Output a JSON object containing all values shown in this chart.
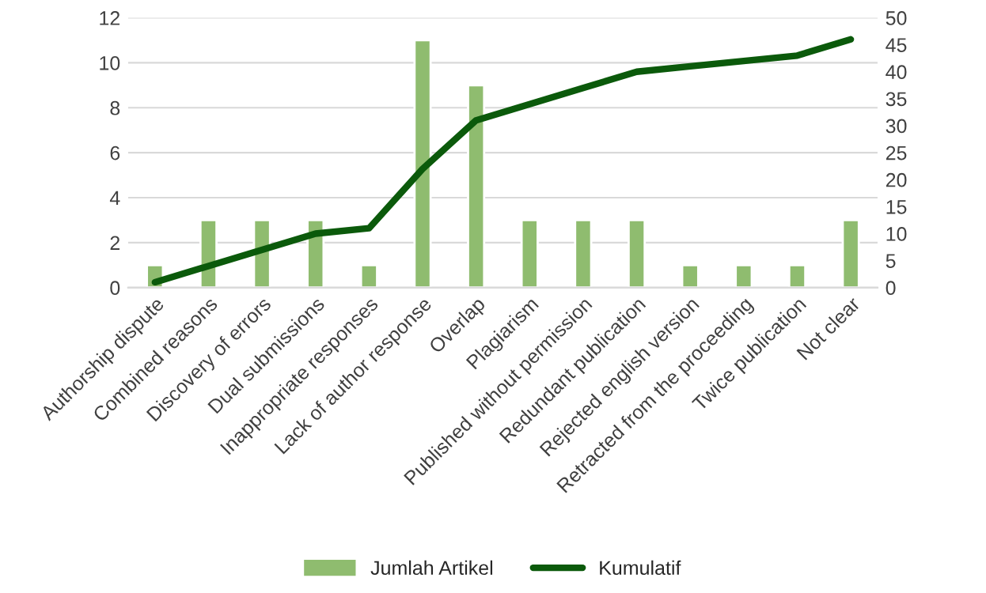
{
  "chart_data": {
    "type": "bar",
    "categories": [
      "Authorship dispute",
      "Combined reasons",
      "Discovery of errors",
      "Dual submissions",
      "Inappropriate responses",
      "Lack of author response",
      "Overlap",
      "Plagiarism",
      "Published without permission",
      "Redundant publication",
      "Rejected english version",
      "Retracted from the proceeding",
      "Twice publication",
      "Not clear"
    ],
    "series": [
      {
        "name": "Jumlah Artikel",
        "color": "#8fbc6f",
        "values": [
          1,
          3,
          3,
          3,
          1,
          11,
          9,
          3,
          3,
          3,
          1,
          1,
          1,
          3
        ]
      },
      {
        "name": "Kumulatif",
        "type": "line",
        "axis": "y2",
        "color": "#0b5a0b",
        "values": [
          1,
          4,
          7,
          10,
          11,
          22,
          31,
          34,
          37,
          40,
          41,
          42,
          43,
          46
        ]
      }
    ],
    "ylim": [
      0,
      12
    ],
    "yticks": [
      0,
      2,
      4,
      6,
      8,
      10,
      12
    ],
    "y2lim": [
      0,
      50
    ],
    "y2ticks": [
      0,
      5,
      10,
      15,
      20,
      25,
      30,
      35,
      40,
      45,
      50
    ],
    "grid": "y",
    "legend": "bottom",
    "marker": "none",
    "line_style": "solid"
  }
}
